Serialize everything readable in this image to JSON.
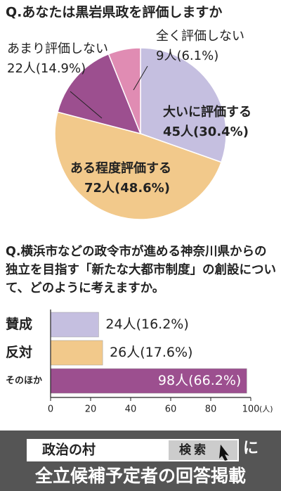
{
  "chart_data": [
    {
      "type": "pie",
      "title": "Q.あなたは黒岩県政を評価しますか",
      "categories": [
        "大いに評価する",
        "ある程度評価する",
        "あまり評価しない",
        "全く評価しない"
      ],
      "values": [
        45,
        72,
        22,
        9
      ],
      "value_labels": [
        "45人(30.4%)",
        "72人(48.6%)",
        "22人(14.9%)",
        "9人(6.1%)"
      ],
      "colors": [
        "#c5bfe0",
        "#f2c98b",
        "#9c4f8f",
        "#e08cb3"
      ]
    },
    {
      "type": "hbar",
      "title": "Q.横浜市などの政令市が進める神奈川県からの独立を目指す「新たな大都市制度」の創設について、どのように考えますか。",
      "categories": [
        "賛成",
        "反対",
        "そのほか"
      ],
      "values": [
        24,
        26,
        98
      ],
      "value_labels": [
        "24人(16.2%)",
        "26人(17.6%)",
        "98人(66.2%)"
      ],
      "colors": [
        "#c5bfe0",
        "#f2c98b",
        "#9c4f8f"
      ],
      "xlim": [
        0,
        100
      ],
      "xticks": [
        0,
        20,
        40,
        60,
        80,
        100
      ],
      "x_label": "(人)"
    }
  ],
  "footer": {
    "search_text": "政治の村",
    "button": "検索",
    "suffix": "に",
    "caption": "全立候補予定者の回答掲載"
  }
}
